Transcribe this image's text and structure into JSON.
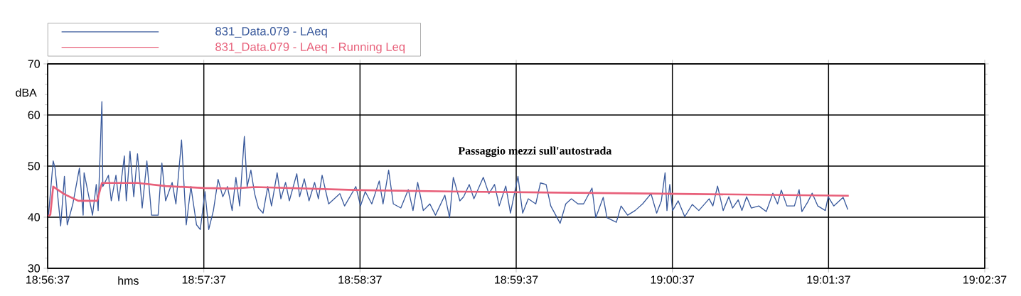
{
  "chart_data": {
    "type": "line",
    "xlabel": "hms",
    "ylabel": "dBA",
    "annotations": [
      "Passaggio mezzi sull'autostrada"
    ],
    "xlim": [
      18.943611,
      19.043611
    ],
    "xticks": [
      {
        "value": 18.943611,
        "label": "18:56:37"
      },
      {
        "value": 18.960278,
        "label": "18:57:37"
      },
      {
        "value": 18.976944,
        "label": "18:58:37"
      },
      {
        "value": 18.993611,
        "label": "18:59:37"
      },
      {
        "value": 19.010278,
        "label": "19:00:37"
      },
      {
        "value": 19.026944,
        "label": "19:01:37"
      },
      {
        "value": 19.043611,
        "label": "19:02:37"
      }
    ],
    "ylim": [
      30,
      70
    ],
    "yticks": [
      30,
      40,
      50,
      60,
      70
    ],
    "grid": true,
    "legend": "top left",
    "marker": "none",
    "line_style": "solid",
    "series": [
      {
        "name": "831_Data.079 - LAeq",
        "color": "#3a5a9c",
        "x": [
          18.9437,
          18.9442,
          18.9444,
          18.945,
          18.9454,
          18.9457,
          18.9463,
          18.947,
          18.9474,
          18.9475,
          18.9484,
          18.9488,
          18.949,
          18.9494,
          18.9495,
          18.9501,
          18.9504,
          18.9509,
          18.9512,
          18.9518,
          18.952,
          18.9524,
          18.9528,
          18.9532,
          18.9537,
          18.9542,
          18.9547,
          18.9554,
          18.9558,
          18.9562,
          18.9569,
          18.9573,
          18.9579,
          18.9584,
          18.9589,
          18.9595,
          18.9599,
          18.9604,
          18.9608,
          18.9613,
          18.9618,
          18.9623,
          18.9628,
          18.9633,
          18.9637,
          18.9641,
          18.9646,
          18.9649,
          18.9653,
          18.9657,
          18.9661,
          18.9666,
          18.9671,
          18.9675,
          18.9681,
          18.9685,
          18.969,
          18.9694,
          18.9702,
          18.9705,
          18.971,
          18.9715,
          18.9721,
          18.9725,
          18.9729,
          18.9736,
          18.9742,
          18.9748,
          18.9753,
          18.9765,
          18.977,
          18.9775,
          18.9782,
          18.979,
          18.9794,
          18.98,
          18.9805,
          18.9813,
          18.9821,
          18.9826,
          18.9831,
          18.9837,
          18.9844,
          18.985,
          18.986,
          18.9865,
          18.9869,
          18.9876,
          18.988,
          18.9886,
          18.9891,
          18.9901,
          18.9907,
          18.9913,
          18.9918,
          18.9925,
          18.993,
          18.9938,
          18.9943,
          18.9949,
          18.9957,
          18.9962,
          18.9968,
          18.9973,
          18.9983,
          18.9989,
          18.9995,
          19.0002,
          19.0008,
          19.0017,
          19.0021,
          19.0029,
          19.0033,
          19.0043,
          19.0048,
          19.0055,
          19.0063,
          19.0071,
          19.008,
          19.0086,
          19.0091,
          19.0095,
          19.0097,
          19.01,
          19.0103,
          19.0109,
          19.0116,
          19.0124,
          19.0131,
          19.0142,
          19.0146,
          19.0151,
          19.0157,
          19.0163,
          19.0167,
          19.0173,
          19.0177,
          19.0182,
          19.0187,
          19.0195,
          19.0203,
          19.021,
          19.0215,
          19.0219,
          19.0225,
          19.0233,
          19.0238,
          19.0241,
          19.0247,
          19.0252,
          19.0258,
          19.0266,
          19.0269,
          19.0275,
          19.0285,
          19.029
        ],
        "values": [
          40.4,
          51,
          49.6,
          38.3,
          48,
          38.5,
          42.6,
          49.6,
          40.4,
          48.7,
          40.4,
          46.4,
          41.3,
          62.6,
          46,
          48.2,
          43.2,
          48.2,
          43.2,
          52,
          43.2,
          52.9,
          44,
          52.4,
          41.8,
          51,
          40.4,
          40.4,
          50.6,
          43.2,
          46.8,
          42.6,
          55.1,
          38.5,
          46,
          38.5,
          37.6,
          45,
          37.6,
          41.3,
          47.4,
          44,
          46,
          41.3,
          47.8,
          42.2,
          55.8,
          46,
          49.2,
          44.6,
          41.8,
          40.8,
          46,
          42.2,
          48.7,
          43.6,
          46.8,
          43.2,
          48.5,
          44,
          47.5,
          43.2,
          46.8,
          43.6,
          48.2,
          42.6,
          43.6,
          44.6,
          42.2,
          46,
          42.2,
          45,
          42.6,
          47.1,
          42.6,
          49.2,
          42.6,
          41.8,
          45.4,
          41.3,
          46.8,
          41.3,
          42.6,
          40.4,
          44.3,
          39.9,
          47.8,
          43.2,
          44,
          46.4,
          43.6,
          47.8,
          44.6,
          46.4,
          42.2,
          46.1,
          40.8,
          48,
          40.8,
          43.6,
          42.6,
          46.7,
          46.4,
          42.2,
          38.8,
          42.6,
          43.6,
          42.6,
          42.6,
          45.7,
          39.9,
          43.9,
          39.9,
          39,
          42.2,
          40.4,
          41.3,
          42.6,
          44.6,
          40.8,
          43.2,
          48.7,
          41.3,
          46.4,
          41.3,
          43.2,
          40.1,
          42.5,
          41.3,
          43.6,
          42.2,
          46.1,
          41.3,
          44,
          41.8,
          43.4,
          41.3,
          44,
          41.8,
          42.2,
          41.1,
          44.7,
          42.6,
          45.3,
          42.2,
          42.2,
          45.4,
          41.1,
          42.9,
          44.7,
          42.2,
          41.3,
          44,
          42.2,
          43.9,
          41.5
        ]
      },
      {
        "name": "831_Data.079 - LAeq - Running Leq",
        "color": "#e8607a",
        "x": [
          18.9437,
          18.9439,
          18.9442,
          18.9454,
          18.9469,
          18.9489,
          18.9494,
          18.9532,
          18.9562,
          18.9603,
          18.9633,
          18.9658,
          18.977,
          18.9879,
          19.0093,
          19.0291
        ],
        "values": [
          40.2,
          40.5,
          46,
          44.5,
          43.2,
          43.2,
          46.7,
          46.7,
          46.1,
          45.7,
          45.6,
          45.9,
          45.3,
          45,
          44.6,
          44.2
        ]
      }
    ]
  }
}
